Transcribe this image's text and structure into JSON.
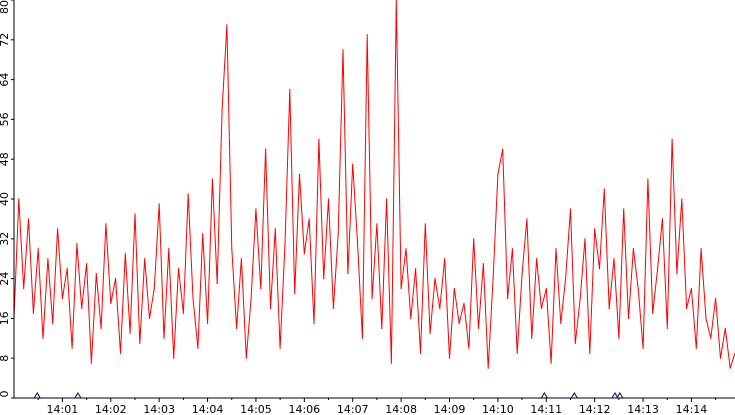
{
  "chart_data": {
    "type": "line",
    "title": "",
    "xlabel": "",
    "ylabel": "",
    "ylim": [
      0,
      80
    ],
    "yticks": [
      0,
      8,
      16,
      24,
      32,
      40,
      48,
      56,
      64,
      72,
      80
    ],
    "xtick_labels": [
      "14:01",
      "14:02",
      "14:03",
      "14:04",
      "14:05",
      "14:06",
      "14:07",
      "14:08",
      "14:09",
      "14:10",
      "14:11",
      "14:12",
      "14:13",
      "14:14"
    ],
    "xlim_minutes": [
      0.0,
      14.9
    ],
    "grid": false,
    "legend": "none",
    "series": [
      {
        "color": "#ff0000",
        "x": [
          0.0,
          0.1,
          0.2,
          0.3,
          0.4,
          0.5,
          0.6,
          0.7,
          0.8,
          0.9,
          1.0,
          1.1,
          1.2,
          1.3,
          1.4,
          1.5,
          1.6,
          1.7,
          1.8,
          1.9,
          2.0,
          2.1,
          2.2,
          2.3,
          2.4,
          2.5,
          2.6,
          2.7,
          2.8,
          2.9,
          3.0,
          3.1,
          3.2,
          3.3,
          3.4,
          3.5,
          3.6,
          3.7,
          3.8,
          3.9,
          4.0,
          4.1,
          4.2,
          4.3,
          4.4,
          4.5,
          4.6,
          4.7,
          4.8,
          4.9,
          5.0,
          5.1,
          5.2,
          5.3,
          5.4,
          5.5,
          5.6,
          5.7,
          5.8,
          5.9,
          6.0,
          6.1,
          6.2,
          6.3,
          6.4,
          6.5,
          6.6,
          6.7,
          6.8,
          6.9,
          7.0,
          7.1,
          7.2,
          7.3,
          7.4,
          7.5,
          7.6,
          7.7,
          7.8,
          7.9,
          8.0,
          8.1,
          8.2,
          8.3,
          8.4,
          8.5,
          8.6,
          8.7,
          8.8,
          8.9,
          9.0,
          9.1,
          9.2,
          9.3,
          9.4,
          9.5,
          9.6,
          9.7,
          9.8,
          9.9,
          10.0,
          10.1,
          10.2,
          10.3,
          10.4,
          10.5,
          10.6,
          10.7,
          10.8,
          10.9,
          11.0,
          11.1,
          11.2,
          11.3,
          11.4,
          11.5,
          11.6,
          11.7,
          11.8,
          11.9,
          12.0,
          12.1,
          12.2,
          12.3,
          12.4,
          12.5,
          12.6,
          12.7,
          12.8,
          12.9,
          13.0,
          13.1,
          13.2,
          13.3,
          13.4,
          13.5,
          13.6,
          13.7,
          13.8,
          13.9,
          14.0,
          14.1,
          14.2,
          14.3,
          14.4,
          14.5,
          14.6,
          14.7,
          14.8,
          14.9
        ],
        "values": [
          16,
          40,
          22,
          36,
          17,
          30,
          12,
          28,
          15,
          34,
          20,
          26,
          10,
          31,
          18,
          27,
          7,
          25,
          14,
          35,
          19,
          24,
          9,
          29,
          13,
          37,
          11,
          28,
          16,
          22,
          39,
          12,
          30,
          8,
          26,
          17,
          41,
          20,
          10,
          33,
          15,
          44,
          23,
          58,
          75,
          30,
          14,
          28,
          8,
          20,
          38,
          22,
          50,
          18,
          34,
          10,
          31,
          62,
          21,
          45,
          29,
          36,
          15,
          52,
          24,
          40,
          18,
          33,
          70,
          25,
          47,
          31,
          12,
          73,
          20,
          35,
          14,
          40,
          7,
          80,
          22,
          30,
          16,
          26,
          9,
          35,
          13,
          24,
          18,
          28,
          8,
          22,
          15,
          19,
          10,
          32,
          14,
          27,
          6,
          24,
          45,
          50,
          20,
          30,
          9,
          25,
          36,
          12,
          28,
          18,
          22,
          7,
          30,
          15,
          24,
          38,
          11,
          20,
          32,
          9,
          34,
          26,
          42,
          18,
          28,
          12,
          38,
          16,
          30,
          22,
          10,
          44,
          17,
          26,
          36,
          14,
          52,
          25,
          40,
          18,
          22,
          10,
          30,
          16,
          12,
          20,
          8,
          14,
          6,
          9
        ]
      }
    ],
    "markers": {
      "color": "#000080",
      "x": [
        0.48,
        1.32,
        10.96,
        11.58,
        12.42,
        12.52
      ]
    }
  }
}
